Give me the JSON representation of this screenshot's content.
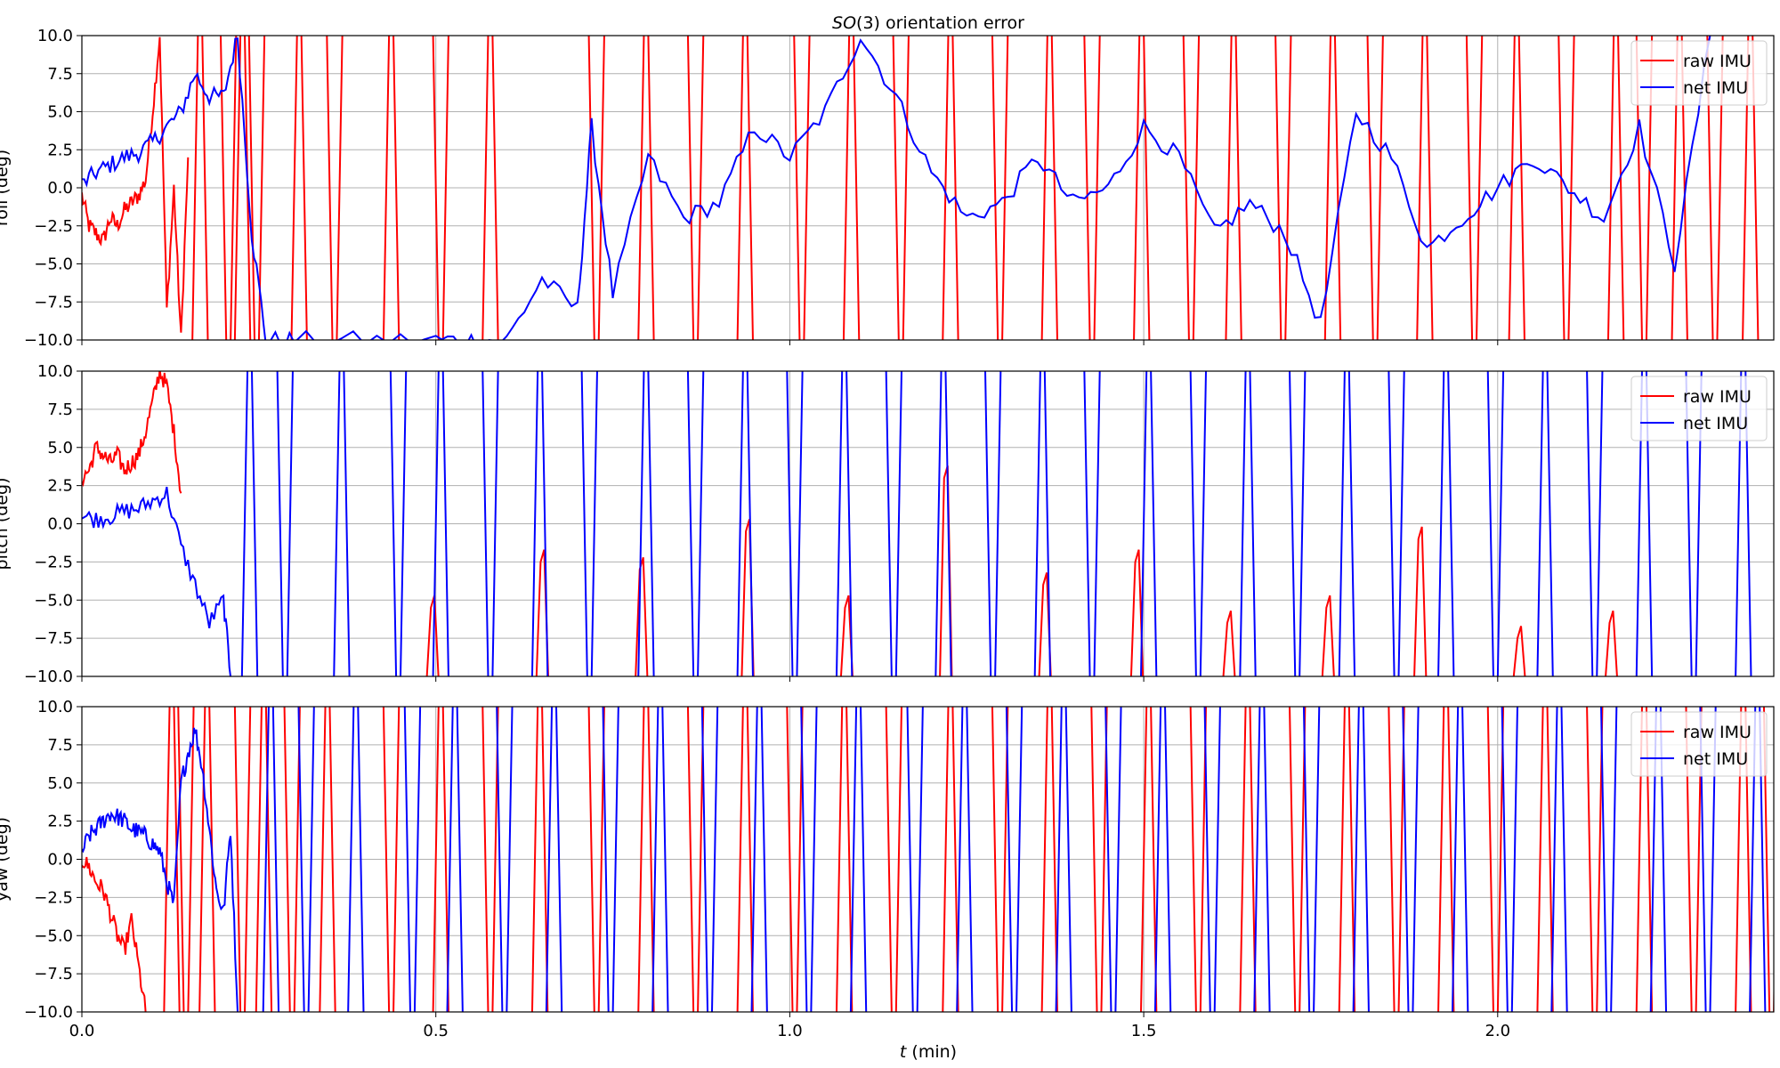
{
  "figure": {
    "title": "SO(3) orientation error",
    "title_italic_part": "SO",
    "title_rest": "(3) orientation error",
    "xlabel_italic": "t",
    "xlabel_rest": " (min)",
    "xlabel": "t (min)"
  },
  "legend": [
    "raw IMU",
    "net IMU"
  ],
  "colors": {
    "raw": "#ff0000",
    "net": "#0000ff",
    "grid": "#b0b0b0"
  },
  "chart_data": [
    {
      "type": "line",
      "ylabel": "roll (deg)",
      "xlim": [
        0,
        2.39
      ],
      "ylim": [
        -10,
        10
      ],
      "grid": true,
      "legend_position": "top-right",
      "yticks": [
        "−10.0",
        "−7.5",
        "−5.0",
        "−2.5",
        "0.0",
        "2.5",
        "5.0",
        "7.5",
        "10.0"
      ],
      "series": [
        {
          "name": "raw IMU",
          "x": [
            0,
            0.01,
            0.02,
            0.03,
            0.04,
            0.05,
            0.06,
            0.07,
            0.08,
            0.09,
            0.1,
            0.11,
            0.12,
            0.13,
            0.14,
            0.15
          ],
          "y": [
            -0.5,
            -2.5,
            -3.0,
            -3.5,
            -2.0,
            -2.5,
            -1.5,
            -1.0,
            -0.5,
            0.5,
            5.0,
            10.0,
            -8.0,
            0.0,
            -10.0,
            2.0
          ],
          "note_y": "values beyond ±10 wrap/clip off the axes",
          "wrap_crossings": [
            0.16,
            0.2,
            0.22,
            0.24,
            0.3,
            0.35,
            0.43,
            0.5,
            0.57,
            0.72,
            0.79,
            0.86,
            0.93,
            1.01,
            1.08,
            1.15,
            1.22,
            1.29,
            1.36,
            1.42,
            1.49,
            1.56,
            1.62,
            1.69,
            1.76,
            1.82,
            1.89,
            1.96,
            2.02,
            2.09,
            2.16,
            2.2,
            2.25,
            2.3,
            2.35
          ]
        },
        {
          "name": "net IMU",
          "x": [
            0,
            0.02,
            0.04,
            0.06,
            0.08,
            0.1,
            0.12,
            0.14,
            0.16,
            0.18,
            0.2,
            0.22,
            0.24,
            0.26,
            0.3,
            0.4,
            0.5,
            0.55,
            0.6,
            0.65,
            0.7,
            0.72,
            0.75,
            0.8,
            0.85,
            0.9,
            0.95,
            1.0,
            1.05,
            1.1,
            1.15,
            1.2,
            1.25,
            1.3,
            1.35,
            1.4,
            1.45,
            1.5,
            1.55,
            1.6,
            1.65,
            1.7,
            1.75,
            1.8,
            1.85,
            1.9,
            1.95,
            2.0,
            2.05,
            2.1,
            2.15,
            2.2,
            2.25,
            2.3
          ],
          "y": [
            0.2,
            1.0,
            1.5,
            2.0,
            2.3,
            3.0,
            4.0,
            5.0,
            7.5,
            6.0,
            6.0,
            10.0,
            -3.0,
            -10.0,
            -10.0,
            -10.0,
            -10.0,
            -10.0,
            -10.0,
            -6.0,
            -8.0,
            4.0,
            -7.0,
            2.0,
            -2.0,
            -1.0,
            4.0,
            2.0,
            5.0,
            10.0,
            6.0,
            1.0,
            -2.0,
            -1.0,
            2.0,
            -1.0,
            0.0,
            4.0,
            2.0,
            -3.0,
            -1.0,
            -3.0,
            -9.0,
            5.0,
            2.0,
            -4.0,
            -2.0,
            0.0,
            2.0,
            0.0,
            -2.0,
            4.0,
            -5.0,
            10.0
          ]
        }
      ]
    },
    {
      "type": "line",
      "ylabel": "pitch (deg)",
      "xlim": [
        0,
        2.39
      ],
      "ylim": [
        -10,
        10
      ],
      "grid": true,
      "legend_position": "top-right",
      "yticks": [
        "−10.0",
        "−7.5",
        "−5.0",
        "−2.5",
        "0.0",
        "2.5",
        "5.0",
        "7.5",
        "10.0"
      ],
      "series": [
        {
          "name": "raw IMU",
          "x": [
            0,
            0.01,
            0.02,
            0.03,
            0.04,
            0.05,
            0.06,
            0.07,
            0.08,
            0.09,
            0.1,
            0.11,
            0.12,
            0.13,
            0.14
          ],
          "y": [
            3.0,
            3.5,
            5.0,
            4.5,
            4.0,
            4.5,
            3.5,
            4.0,
            4.5,
            6.0,
            8.0,
            10.0,
            9.0,
            6.0,
            2.0
          ],
          "peaks": [
            {
              "x": 0.495,
              "y": -5.5
            },
            {
              "x": 0.65,
              "y": -2.5
            },
            {
              "x": 0.79,
              "y": -3.0
            },
            {
              "x": 0.94,
              "y": -0.5
            },
            {
              "x": 1.08,
              "y": -5.5
            },
            {
              "x": 1.22,
              "y": 3.0
            },
            {
              "x": 1.36,
              "y": -4.0
            },
            {
              "x": 1.49,
              "y": -2.5
            },
            {
              "x": 1.62,
              "y": -6.5
            },
            {
              "x": 1.76,
              "y": -5.5
            },
            {
              "x": 1.89,
              "y": -1.0
            },
            {
              "x": 2.03,
              "y": -7.5
            },
            {
              "x": 2.16,
              "y": -6.5
            }
          ]
        },
        {
          "name": "net IMU",
          "x": [
            0,
            0.02,
            0.04,
            0.06,
            0.08,
            0.1,
            0.12,
            0.14,
            0.16,
            0.18,
            0.2,
            0.21
          ],
          "y": [
            0.5,
            0.3,
            0.5,
            0.8,
            1.0,
            1.5,
            2.0,
            -1.5,
            -4.0,
            -6.5,
            -5.0,
            -10.0
          ],
          "wrap_crossings": [
            0.23,
            0.28,
            0.36,
            0.44,
            0.5,
            0.57,
            0.64,
            0.71,
            0.79,
            0.86,
            0.93,
            1.0,
            1.07,
            1.14,
            1.21,
            1.28,
            1.35,
            1.42,
            1.5,
            1.57,
            1.64,
            1.71,
            1.78,
            1.85,
            1.92,
            1.99,
            2.06,
            2.13,
            2.2,
            2.27,
            2.34
          ]
        }
      ]
    },
    {
      "type": "line",
      "ylabel": "yaw (deg)",
      "xlim": [
        0,
        2.39
      ],
      "ylim": [
        -10,
        10
      ],
      "grid": true,
      "legend_position": "top-right",
      "yticks": [
        "−10.0",
        "−7.5",
        "−5.0",
        "−2.5",
        "0.0",
        "2.5",
        "5.0",
        "7.5",
        "10.0"
      ],
      "series": [
        {
          "name": "raw IMU",
          "x": [
            0,
            0.01,
            0.02,
            0.03,
            0.04,
            0.05,
            0.06,
            0.07,
            0.08,
            0.09
          ],
          "y": [
            0.0,
            -0.5,
            -1.5,
            -2.0,
            -3.5,
            -5.0,
            -6.0,
            -4.0,
            -7.0,
            -10.0
          ],
          "wrap_crossings": [
            0.12,
            0.14,
            0.17,
            0.22,
            0.25,
            0.29,
            0.34,
            0.43,
            0.5,
            0.57,
            0.64,
            0.72,
            0.79,
            0.86,
            0.93,
            1.0,
            1.07,
            1.14,
            1.22,
            1.29,
            1.36,
            1.43,
            1.5,
            1.57,
            1.64,
            1.71,
            1.78,
            1.85,
            1.92,
            1.99,
            2.06,
            2.13,
            2.2,
            2.27,
            2.34,
            2.38
          ]
        },
        {
          "name": "net IMU",
          "x": [
            0,
            0.01,
            0.02,
            0.03,
            0.04,
            0.05,
            0.06,
            0.07,
            0.08,
            0.09,
            0.1,
            0.11,
            0.12,
            0.13,
            0.14,
            0.15,
            0.16,
            0.17,
            0.18,
            0.19,
            0.2,
            0.21,
            0.22
          ],
          "y": [
            0.5,
            1.5,
            2.0,
            2.5,
            3.0,
            2.8,
            2.5,
            2.0,
            1.8,
            1.5,
            1.0,
            0.5,
            -1.5,
            -3.0,
            5.0,
            7.0,
            8.5,
            6.0,
            2.0,
            -2.0,
            -3.5,
            2.0,
            -10.0
          ],
          "wrap_crossings": [
            0.26,
            0.31,
            0.38,
            0.46,
            0.52,
            0.59,
            0.66,
            0.74,
            0.81,
            0.88,
            0.95,
            1.02,
            1.09,
            1.17,
            1.24,
            1.31,
            1.38,
            1.45,
            1.52,
            1.59,
            1.66,
            1.73,
            1.8,
            1.87,
            1.94,
            2.01,
            2.08,
            2.15,
            2.22,
            2.29,
            2.36
          ]
        }
      ]
    }
  ],
  "xticks": [
    "0.0",
    "0.5",
    "1.0",
    "1.5",
    "2.0"
  ],
  "xtick_values": [
    0,
    0.5,
    1.0,
    1.5,
    2.0
  ]
}
